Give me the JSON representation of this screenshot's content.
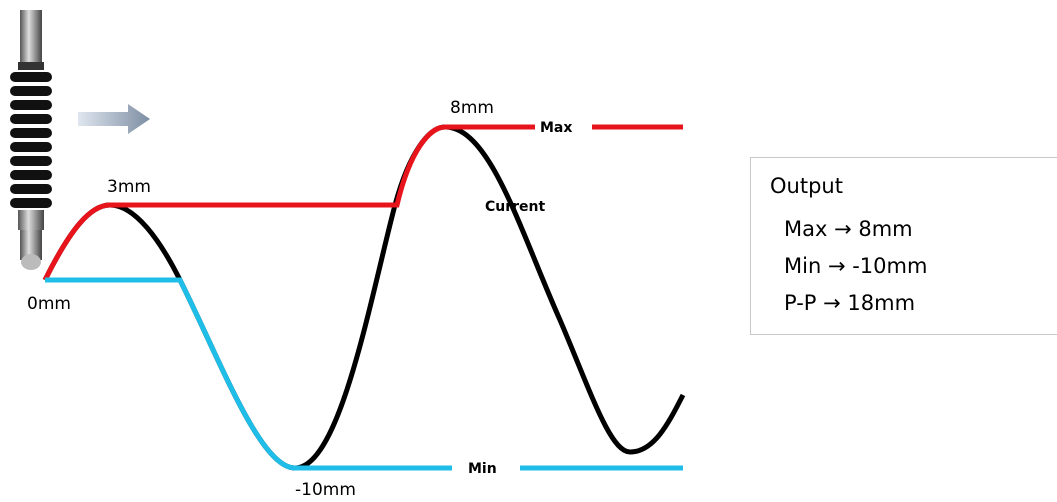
{
  "labels": {
    "max_value": "8mm",
    "peak_value": "3mm",
    "start_value": "0mm",
    "min_value": "-10mm",
    "max": "Max",
    "min": "Min",
    "current": "Current"
  },
  "output": {
    "title": "Output",
    "lines": [
      "Max → 8mm",
      "Min → -10mm",
      "P-P → 18mm"
    ]
  }
}
